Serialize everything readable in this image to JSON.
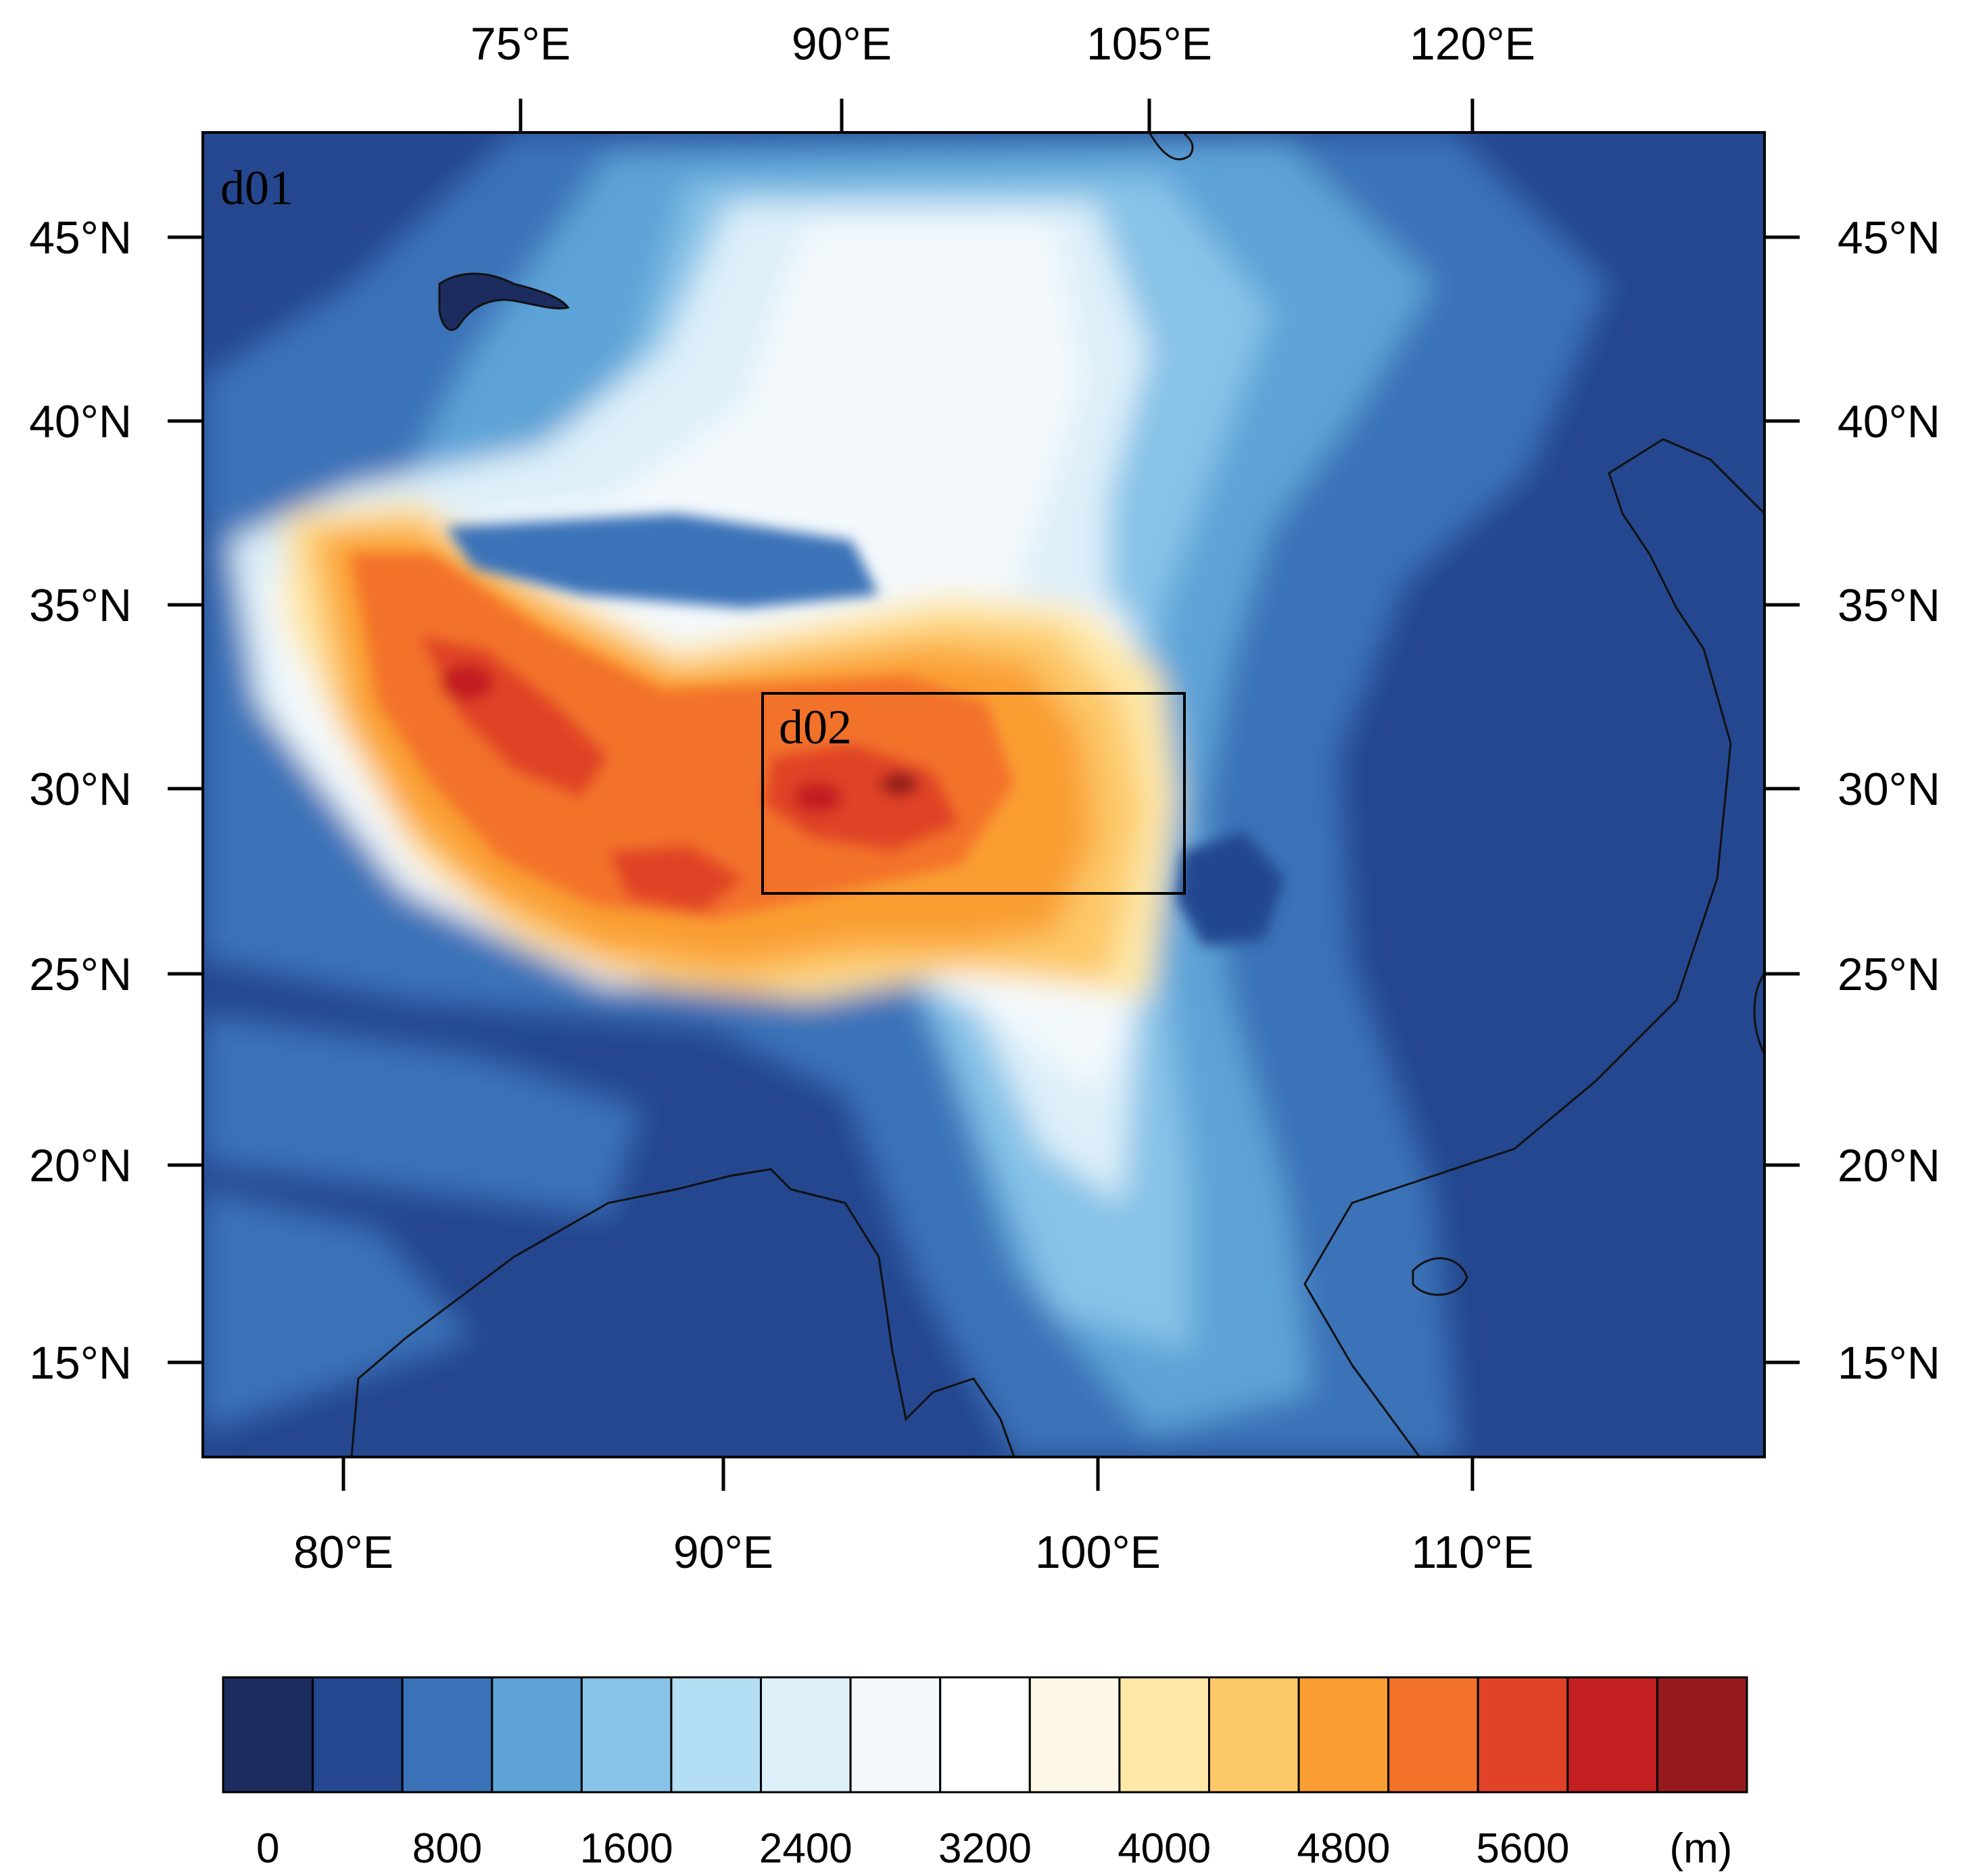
{
  "map": {
    "panel_label": "d01",
    "inner_domain_label": "d02",
    "top_ticks": [
      "75°E",
      "90°E",
      "105°E",
      "120°E"
    ],
    "bottom_ticks": [
      "80°E",
      "90°E",
      "100°E",
      "110°E"
    ],
    "left_ticks": [
      "45°N",
      "40°N",
      "35°N",
      "30°N",
      "25°N",
      "20°N",
      "15°N"
    ],
    "right_ticks": [
      "45°N",
      "40°N",
      "35°N",
      "30°N",
      "25°N",
      "20°N",
      "15°N"
    ]
  },
  "colorbar": {
    "colors": [
      "#1c2c5e",
      "#24478f",
      "#3a72b8",
      "#5da3d7",
      "#87c3e8",
      "#b3def3",
      "#ddeff9",
      "#f4f9fd",
      "#ffffff",
      "#fff8e8",
      "#fee8a8",
      "#fdc867",
      "#fa9e33",
      "#f37229",
      "#e04327",
      "#c41f22",
      "#941a1e"
    ],
    "labels": [
      "0",
      "800",
      "1600",
      "2400",
      "3200",
      "4000",
      "4800",
      "5600"
    ],
    "unit": "(m)"
  }
}
